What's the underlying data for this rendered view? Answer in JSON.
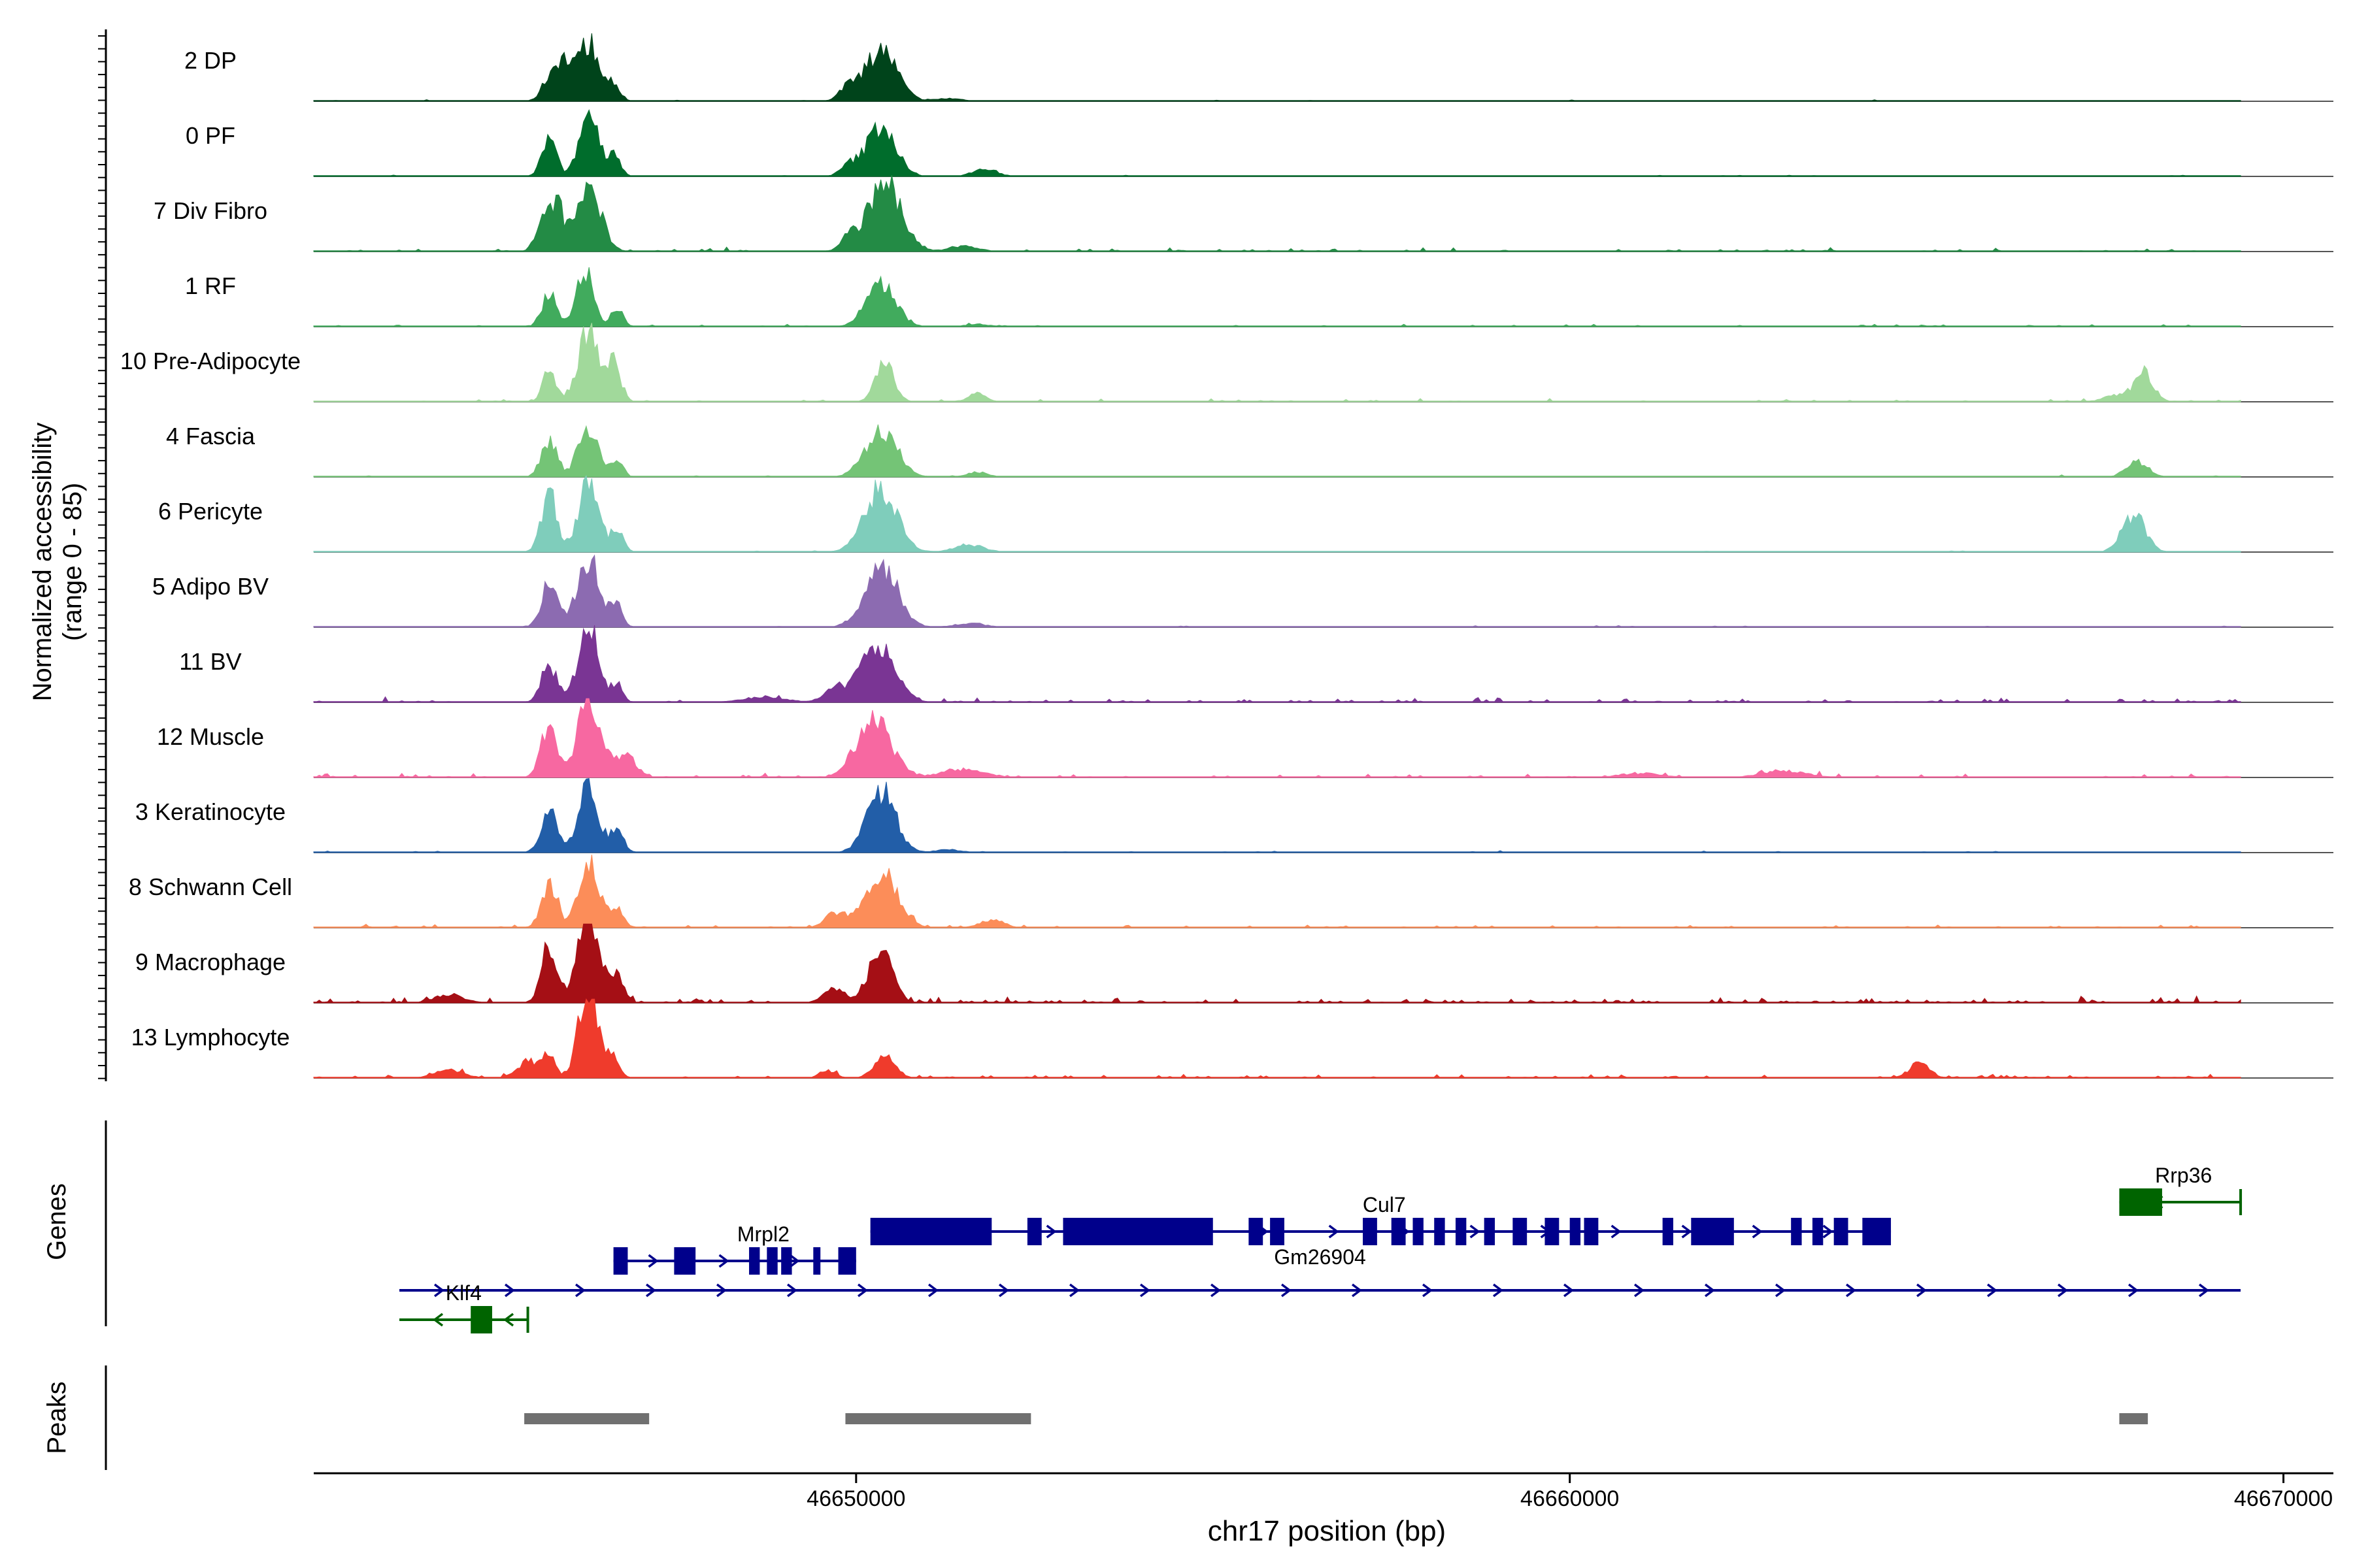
{
  "chart_data": {
    "type": "area",
    "title": "",
    "xlabel": "chr17 position (bp)",
    "ylabel_line1": "Normalized accessibility",
    "ylabel_line2": "(range 0 - 85)",
    "y_range": [
      0,
      85
    ],
    "x_range": [
      46642400,
      46670700
    ],
    "x_ticks": [
      {
        "value": 46650000,
        "label": "46650000"
      },
      {
        "value": 46660000,
        "label": "46660000"
      },
      {
        "value": 46670000,
        "label": "46670000"
      }
    ],
    "data_start": 46642400,
    "data_end": 46669400,
    "tracks": [
      {
        "name": "2 DP",
        "color": "#00441b",
        "peaks": [
          [
            46645700,
            0.3,
            110
          ],
          [
            46645900,
            0.55,
            110
          ],
          [
            46646250,
            0.85,
            140
          ],
          [
            46646600,
            0.25,
            90
          ],
          [
            46650350,
            0.75,
            220
          ],
          [
            46649900,
            0.22,
            120
          ],
          [
            46651300,
            0.04,
            200
          ]
        ],
        "noise": 0.02
      },
      {
        "name": "0 PF",
        "color": "#006d2c",
        "peaks": [
          [
            46645700,
            0.55,
            100
          ],
          [
            46646250,
            0.9,
            130
          ],
          [
            46646600,
            0.35,
            90
          ],
          [
            46650350,
            0.75,
            200
          ],
          [
            46651800,
            0.12,
            160
          ],
          [
            46649900,
            0.15,
            120
          ]
        ],
        "noise": 0.02
      },
      {
        "name": "7 Div Fibro",
        "color": "#238b45",
        "peaks": [
          [
            46645600,
            0.35,
            100
          ],
          [
            46645800,
            0.7,
            90
          ],
          [
            46646250,
            1.0,
            170
          ],
          [
            46650400,
            1.0,
            230
          ],
          [
            46649900,
            0.18,
            120
          ],
          [
            46651500,
            0.08,
            200
          ]
        ],
        "noise": 0.05
      },
      {
        "name": "1 RF",
        "color": "#41ab5d",
        "peaks": [
          [
            46645700,
            0.5,
            100
          ],
          [
            46646200,
            0.8,
            120
          ],
          [
            46646650,
            0.3,
            80
          ],
          [
            46650350,
            0.65,
            200
          ],
          [
            46651700,
            0.04,
            150
          ]
        ],
        "noise": 0.03
      },
      {
        "name": "10 Pre-Adipocyte",
        "color": "#a1d99b",
        "peaks": [
          [
            46645700,
            0.45,
            90
          ],
          [
            46646250,
            1.0,
            150
          ],
          [
            46646600,
            0.55,
            100
          ],
          [
            46650400,
            0.55,
            130
          ],
          [
            46651700,
            0.12,
            120
          ],
          [
            46668050,
            0.4,
            130
          ],
          [
            46667700,
            0.1,
            200
          ]
        ],
        "noise": 0.04
      },
      {
        "name": "4 Fascia",
        "color": "#74c476",
        "peaks": [
          [
            46645700,
            0.55,
            110
          ],
          [
            46646250,
            0.75,
            140
          ],
          [
            46646650,
            0.25,
            80
          ],
          [
            46650350,
            0.7,
            220
          ],
          [
            46651700,
            0.07,
            150
          ],
          [
            46667950,
            0.22,
            150
          ]
        ],
        "noise": 0.02
      },
      {
        "name": "6 Pericyte",
        "color": "#7fcdbb",
        "peaks": [
          [
            46645700,
            0.85,
            110
          ],
          [
            46646250,
            1.0,
            140
          ],
          [
            46646650,
            0.3,
            90
          ],
          [
            46650350,
            0.9,
            230
          ],
          [
            46651600,
            0.1,
            200
          ],
          [
            46667900,
            0.55,
            160
          ]
        ],
        "noise": 0.02
      },
      {
        "name": "5 Adipo BV",
        "color": "#8c6bb1",
        "peaks": [
          [
            46645700,
            0.65,
            110
          ],
          [
            46646250,
            1.0,
            160
          ],
          [
            46646650,
            0.3,
            80
          ],
          [
            46650350,
            0.9,
            230
          ],
          [
            46651600,
            0.06,
            200
          ]
        ],
        "noise": 0.02
      },
      {
        "name": "11 BV",
        "color": "#7a3594",
        "peaks": [
          [
            46645700,
            0.55,
            110
          ],
          [
            46646250,
            1.1,
            140
          ],
          [
            46646650,
            0.25,
            80
          ],
          [
            46650300,
            0.8,
            240
          ],
          [
            46649700,
            0.2,
            150
          ],
          [
            46648700,
            0.08,
            300
          ]
        ],
        "noise": 0.06
      },
      {
        "name": "12 Muscle",
        "color": "#f768a1",
        "peaks": [
          [
            46645700,
            0.8,
            110
          ],
          [
            46646250,
            1.2,
            150
          ],
          [
            46646750,
            0.35,
            150
          ],
          [
            46650250,
            0.85,
            240
          ],
          [
            46651500,
            0.12,
            300
          ],
          [
            46663000,
            0.1,
            300
          ],
          [
            46661000,
            0.06,
            300
          ]
        ],
        "noise": 0.05
      },
      {
        "name": "3 Keratinocyte",
        "color": "#225ea8",
        "peaks": [
          [
            46645700,
            0.65,
            110
          ],
          [
            46646250,
            0.95,
            140
          ],
          [
            46646650,
            0.35,
            90
          ],
          [
            46650350,
            0.9,
            200
          ],
          [
            46651300,
            0.04,
            200
          ]
        ],
        "noise": 0.02
      },
      {
        "name": "8 Schwann Cell",
        "color": "#fc8d59",
        "peaks": [
          [
            46645700,
            0.65,
            110
          ],
          [
            46646250,
            1.0,
            140
          ],
          [
            46646650,
            0.3,
            90
          ],
          [
            46650350,
            0.8,
            230
          ],
          [
            46649700,
            0.2,
            150
          ],
          [
            46651900,
            0.12,
            160
          ]
        ],
        "noise": 0.04
      },
      {
        "name": "9 Macrophage",
        "color": "#a50f15",
        "peaks": [
          [
            46645700,
            0.8,
            110
          ],
          [
            46646250,
            1.3,
            150
          ],
          [
            46646650,
            0.35,
            100
          ],
          [
            46650350,
            0.8,
            160
          ],
          [
            46649700,
            0.2,
            150
          ],
          [
            46644300,
            0.12,
            200
          ]
        ],
        "noise": 0.07
      },
      {
        "name": "13 Lymphocyte",
        "color": "#ef3b2c",
        "peaks": [
          [
            46645400,
            0.25,
            150
          ],
          [
            46645700,
            0.3,
            90
          ],
          [
            46646250,
            1.4,
            130
          ],
          [
            46646600,
            0.3,
            90
          ],
          [
            46650400,
            0.3,
            150
          ],
          [
            46649600,
            0.12,
            100
          ],
          [
            46644300,
            0.12,
            200
          ],
          [
            46664900,
            0.22,
            140
          ]
        ],
        "noise": 0.05
      }
    ],
    "genes_label": "Genes",
    "peaks_label": "Peaks",
    "genes": [
      {
        "name": "Mrpl2",
        "row": 2,
        "strand": "+",
        "color": "#00008b",
        "start": 46646600,
        "end": 46650000,
        "label_pos": 46648700,
        "label_side": "above",
        "exons": [
          [
            46646600,
            46646800
          ],
          [
            46647450,
            46647750
          ],
          [
            46648500,
            46648650
          ],
          [
            46648750,
            46648900
          ],
          [
            46648950,
            46649100
          ],
          [
            46649400,
            46649500
          ],
          [
            46649750,
            46650000
          ]
        ]
      },
      {
        "name": "Cul7",
        "row": 1,
        "strand": "+",
        "color": "#00008b",
        "start": 46650200,
        "end": 46664500,
        "label_pos": 46657400,
        "label_side": "above",
        "exons": [
          [
            46650200,
            46651900
          ],
          [
            46652400,
            46652600
          ],
          [
            46652900,
            46655000
          ],
          [
            46655500,
            46655700
          ],
          [
            46655800,
            46656000
          ],
          [
            46657100,
            46657300
          ],
          [
            46657500,
            46657700
          ],
          [
            46657800,
            46657950
          ],
          [
            46658100,
            46658250
          ],
          [
            46658400,
            46658550
          ],
          [
            46658800,
            46658950
          ],
          [
            46659200,
            46659400
          ],
          [
            46659650,
            46659850
          ],
          [
            46660000,
            46660150
          ],
          [
            46660200,
            46660400
          ],
          [
            46661300,
            46661450
          ],
          [
            46661700,
            46662300
          ],
          [
            46663100,
            46663250
          ],
          [
            46663400,
            46663550
          ],
          [
            46663700,
            46663900
          ],
          [
            46664100,
            46664500
          ]
        ]
      },
      {
        "name": "Gm26904",
        "row": 3,
        "strand": "+",
        "color": "#00008b",
        "start": 46643600,
        "end": 46669400,
        "label_pos": 46656500,
        "label_side": "above",
        "exons": []
      },
      {
        "name": "Klf4",
        "row": 4,
        "strand": "-",
        "color": "#006400",
        "start": 46643600,
        "end": 46645400,
        "label_pos": 46644500,
        "label_side": "above",
        "exons": [
          [
            46644600,
            46644900
          ]
        ]
      },
      {
        "name": "Rrp36",
        "row": 0,
        "strand": "-",
        "color": "#006400",
        "start": 46667700,
        "end": 46669400,
        "label_pos": 46668600,
        "label_side": "above",
        "exons": [
          [
            46667700,
            46668300
          ]
        ]
      }
    ],
    "peak_regions": [
      [
        46645350,
        46647100
      ],
      [
        46649850,
        46652450
      ],
      [
        46667700,
        46668100
      ]
    ]
  }
}
